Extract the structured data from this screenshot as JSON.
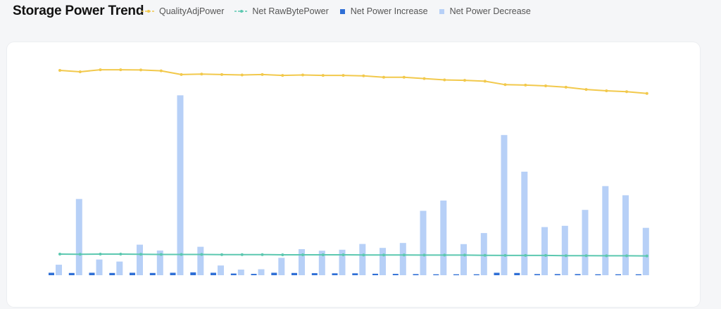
{
  "header": {
    "title": "Storage Power Trend"
  },
  "colors": {
    "quality_adj": "#f2c94c",
    "net_raw": "#5cc8b0",
    "increase": "#2f6fd6",
    "decrease": "#b7d0f7"
  },
  "legend": [
    {
      "label": "QualityAdjPower",
      "kind": "line",
      "color_key": "quality_adj"
    },
    {
      "label": "Net RawBytePower",
      "kind": "line",
      "color_key": "net_raw"
    },
    {
      "label": "Net Power Increase",
      "kind": "bar",
      "color_key": "increase"
    },
    {
      "label": "Net Power Decrease",
      "kind": "bar",
      "color_key": "decrease"
    }
  ],
  "chart_data": {
    "type": "bar",
    "title": "Storage Power Trend",
    "grid": false,
    "legend_position": "top",
    "points": 30,
    "series": [
      {
        "name": "QualityAdjPower",
        "type": "line",
        "values": [
          100,
          98.6,
          100.6,
          100.6,
          100.4,
          99.6,
          95.9,
          96.4,
          95.9,
          95.5,
          95.9,
          95.1,
          95.5,
          95.1,
          95.1,
          94.6,
          93.3,
          93.3,
          92.0,
          90.7,
          90.3,
          89.4,
          86.0,
          85.6,
          84.8,
          83.5,
          81.3,
          80.0,
          79.1,
          77.4
        ]
      },
      {
        "name": "Net RawBytePower",
        "type": "line",
        "values": [
          12.7,
          12.6,
          12.7,
          12.7,
          12.6,
          12.5,
          12.5,
          12.5,
          12.4,
          12.4,
          12.4,
          12.3,
          12.3,
          12.3,
          12.3,
          12.2,
          12.2,
          12.2,
          12.1,
          12.1,
          12.1,
          12.0,
          11.9,
          11.9,
          11.9,
          11.8,
          11.8,
          11.7,
          11.7,
          11.6
        ]
      },
      {
        "name": "Net Power Increase",
        "type": "bar",
        "values": [
          1.3,
          1.2,
          1.3,
          1.2,
          1.3,
          1.2,
          1.3,
          1.5,
          1.3,
          0.9,
          0.7,
          1.3,
          1.2,
          1.1,
          1.0,
          1.0,
          0.8,
          0.7,
          0.6,
          0.5,
          0.5,
          0.5,
          1.3,
          1.2,
          0.6,
          0.6,
          0.6,
          0.5,
          0.5,
          0.5
        ]
      },
      {
        "name": "Net Power Decrease",
        "type": "bar",
        "values": [
          5.6,
          40.7,
          8.4,
          7.3,
          16.3,
          13.2,
          96.1,
          15.2,
          5.2,
          3.0,
          3.2,
          9.3,
          13.9,
          13.1,
          13.6,
          16.7,
          14.6,
          17.2,
          34.4,
          39.9,
          16.6,
          22.5,
          74.9,
          55.3,
          25.7,
          26.4,
          34.9,
          47.6,
          42.7,
          25.3
        ]
      }
    ]
  }
}
